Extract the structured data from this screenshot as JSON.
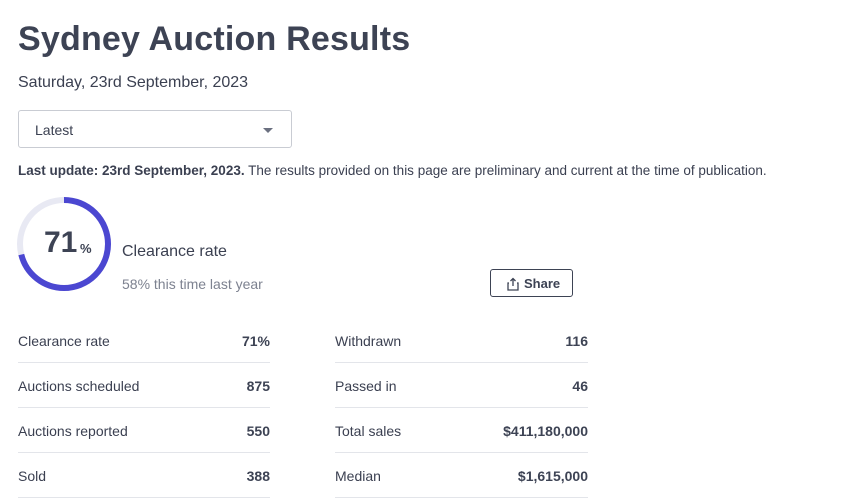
{
  "header": {
    "title": "Sydney Auction Results",
    "date": "Saturday, 23rd September, 2023"
  },
  "filter": {
    "selected": "Latest"
  },
  "update": {
    "bold": "Last update: 23rd September, 2023.",
    "text": " The results provided on this page are preliminary and current at the time of publication."
  },
  "clearance": {
    "value": "71",
    "unit": "%",
    "fraction": 0.71,
    "label": "Clearance rate",
    "comparison": "58% this time last year",
    "accent_color": "#4b47d1"
  },
  "share": {
    "label": "Share",
    "icon": "share-icon"
  },
  "stats_left": [
    {
      "label": "Clearance rate",
      "value": "71%"
    },
    {
      "label": "Auctions scheduled",
      "value": "875"
    },
    {
      "label": "Auctions reported",
      "value": "550"
    },
    {
      "label": "Sold",
      "value": "388"
    }
  ],
  "stats_right": [
    {
      "label": "Withdrawn",
      "value": "116"
    },
    {
      "label": "Passed in",
      "value": "46"
    },
    {
      "label": "Total sales",
      "value": "$411,180,000"
    },
    {
      "label": "Median",
      "value": "$1,615,000"
    }
  ]
}
